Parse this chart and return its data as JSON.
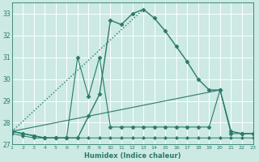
{
  "xlabel": "Humidex (Indice chaleur)",
  "bg_color": "#cce9e4",
  "grid_color": "#ffffff",
  "line_color": "#2a7a6a",
  "xlim": [
    1,
    23
  ],
  "ylim": [
    27.0,
    33.5
  ],
  "yticks": [
    27,
    28,
    29,
    30,
    31,
    32,
    33
  ],
  "xticks": [
    1,
    2,
    3,
    4,
    5,
    6,
    7,
    8,
    9,
    10,
    11,
    12,
    13,
    14,
    15,
    16,
    17,
    18,
    19,
    20,
    21,
    22,
    23
  ],
  "series": [
    {
      "x": [
        1,
        2,
        3,
        4,
        5,
        6,
        7,
        8,
        9,
        10,
        11,
        12,
        13,
        14,
        15,
        16,
        17,
        18,
        19,
        20,
        21,
        22,
        23
      ],
      "y": [
        27.6,
        27.5,
        27.4,
        27.3,
        27.3,
        27.3,
        27.3,
        28.3,
        29.3,
        32.7,
        32.5,
        33.0,
        33.2,
        32.8,
        32.2,
        31.5,
        30.8,
        30.0,
        29.5,
        29.5,
        27.6,
        27.5,
        27.5
      ],
      "style": "-",
      "marker": "D",
      "markersize": 2.5,
      "linewidth": 1.0
    },
    {
      "x": [
        1,
        13
      ],
      "y": [
        27.6,
        33.2
      ],
      "style": ":",
      "marker": null,
      "markersize": 0,
      "linewidth": 1.0
    },
    {
      "x": [
        1,
        2,
        3,
        4,
        5,
        6,
        7,
        8,
        9,
        10,
        11,
        12,
        13,
        14,
        15,
        16,
        17,
        18,
        19,
        20,
        21,
        22,
        23
      ],
      "y": [
        27.6,
        27.5,
        27.4,
        27.3,
        27.3,
        27.3,
        31.0,
        29.2,
        31.0,
        27.8,
        27.8,
        27.8,
        27.8,
        27.8,
        27.8,
        27.8,
        27.8,
        27.8,
        27.8,
        29.5,
        27.5,
        27.5,
        27.5
      ],
      "style": "-",
      "marker": "D",
      "markersize": 2.5,
      "linewidth": 0.8
    },
    {
      "x": [
        1,
        20
      ],
      "y": [
        27.6,
        29.5
      ],
      "style": "-",
      "marker": null,
      "markersize": 0,
      "linewidth": 0.8
    },
    {
      "x": [
        1,
        2,
        3,
        4,
        5,
        6,
        7,
        8,
        9,
        10,
        11,
        12,
        13,
        14,
        15,
        16,
        17,
        18,
        19,
        20,
        21,
        22,
        23
      ],
      "y": [
        27.5,
        27.4,
        27.3,
        27.3,
        27.3,
        27.3,
        27.3,
        27.3,
        27.3,
        27.3,
        27.3,
        27.3,
        27.3,
        27.3,
        27.3,
        27.3,
        27.3,
        27.3,
        27.3,
        27.3,
        27.3,
        27.3,
        27.3
      ],
      "style": "-",
      "marker": "D",
      "markersize": 2.0,
      "linewidth": 0.7
    }
  ]
}
